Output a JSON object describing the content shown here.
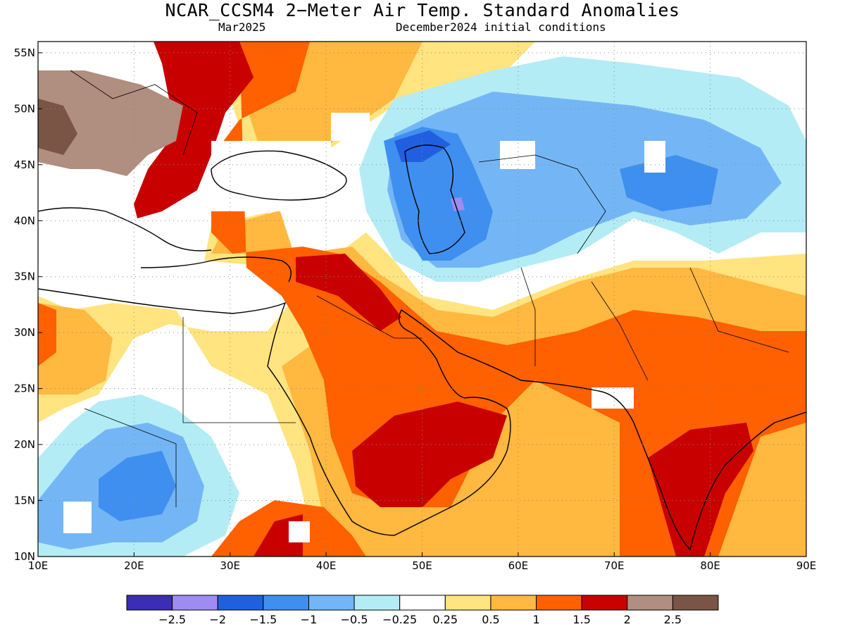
{
  "title": "NCAR_CCSM4 2−Meter Air Temp. Standard Anomalies",
  "subtitle_left": "Mar2025",
  "subtitle_right": "December2024 initial conditions",
  "map": {
    "lon_range": [
      10,
      90
    ],
    "lat_range": [
      10,
      56
    ],
    "lon_ticks": [
      "10E",
      "20E",
      "30E",
      "40E",
      "50E",
      "60E",
      "70E",
      "80E",
      "90E"
    ],
    "lat_ticks": [
      "10N",
      "15N",
      "20N",
      "25N",
      "30N",
      "35N",
      "40N",
      "45N",
      "50N",
      "55N"
    ],
    "gridlines": "dotted"
  },
  "colorbar": {
    "colors": [
      "#3b2db5",
      "#9f8cf2",
      "#2060e0",
      "#3f8ff0",
      "#74b6f5",
      "#b4ecf5",
      "#ffffff",
      "#ffe480",
      "#ffb840",
      "#ff6000",
      "#c80000",
      "#b08e80",
      "#7a5444"
    ],
    "labels": [
      "−2.5",
      "−2",
      "−1.5",
      "−1",
      "−0.5",
      "−0.25",
      "0.25",
      "0.5",
      "1",
      "1.5",
      "2",
      "2.5"
    ]
  }
}
